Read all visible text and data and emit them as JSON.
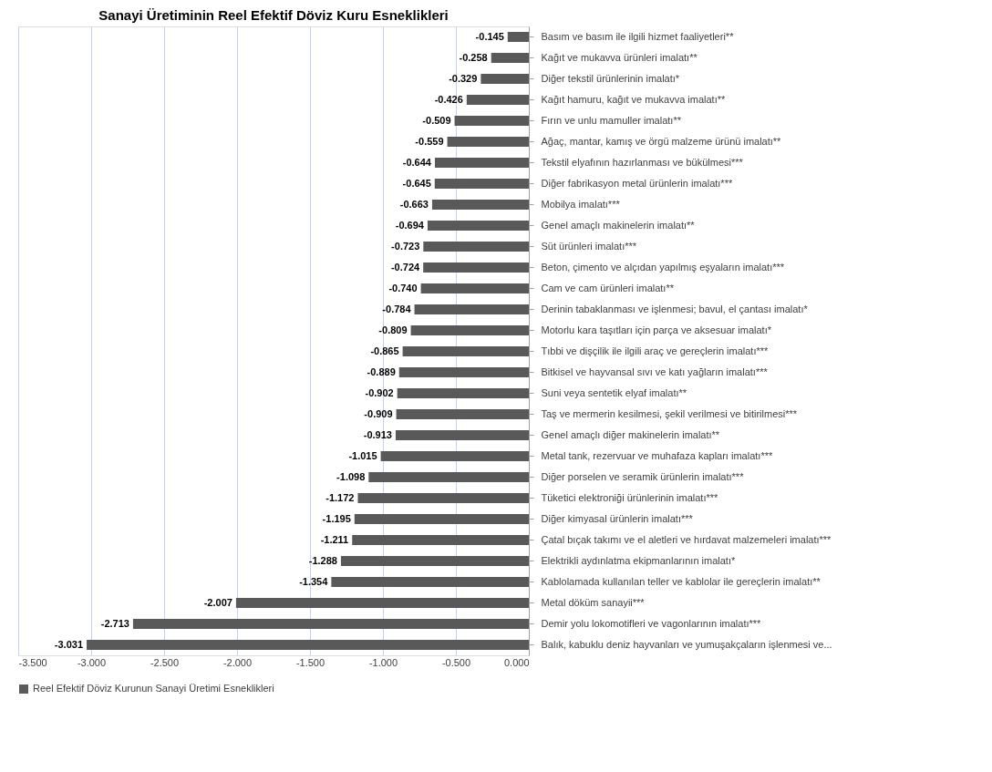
{
  "chart_data": {
    "type": "bar",
    "orientation": "horizontal",
    "title": "Sanayi Üretiminin Reel Efektif Döviz Kuru Esneklikleri",
    "categories": [
      "Basım ve basım ile ilgili hizmet faaliyetleri**",
      "Kağıt ve mukavva ürünleri imalatı**",
      "Diğer tekstil ürünlerinin imalatı*",
      "Kağıt hamuru, kağıt ve mukavva imalatı**",
      "Fırın ve unlu mamuller imalatı**",
      "Ağaç, mantar, kamış ve örgü malzeme ürünü imalatı**",
      "Tekstil elyafının hazırlanması ve bükülmesi***",
      "Diğer fabrikasyon metal ürünlerin imalatı***",
      "Mobilya imalatı***",
      "Genel amaçlı makinelerin imalatı**",
      "Süt ürünleri imalatı***",
      "Beton, çimento ve alçıdan yapılmış eşyaların imalatı***",
      "Cam ve cam ürünleri imalatı**",
      "Derinin tabaklanması ve işlenmesi; bavul, el çantası imalatı*",
      "Motorlu kara taşıtları için parça ve aksesuar imalatı*",
      "Tıbbi ve dişçilik ile ilgili araç ve gereçlerin imalatı***",
      "Bitkisel ve hayvansal sıvı ve katı yağların imalatı***",
      "Suni veya sentetik elyaf imalatı**",
      "Taş ve mermerin kesilmesi, şekil verilmesi ve bitirilmesi***",
      "Genel amaçlı diğer makinelerin imalatı**",
      "Metal tank, rezervuar ve muhafaza kapları imalatı***",
      "Diğer porselen ve seramik ürünlerin imalatı***",
      "Tüketici elektroniği ürünlerinin imalatı***",
      "Diğer kimyasal ürünlerin imalatı***",
      "Çatal bıçak takımı ve el aletleri ve hırdavat malzemeleri imalatı***",
      "Elektrikli aydınlatma ekipmanlarının imalatı*",
      "Kablolamada kullanılan teller ve kablolar ile gereçlerin imalatı**",
      "Metal döküm sanayii***",
      "Demir yolu lokomotifleri ve vagonlarının imalatı***",
      "Balık, kabuklu deniz hayvanları ve yumuşakçaların işlenmesi ve..."
    ],
    "series": [
      {
        "name": "Reel Efektif Döviz Kurunun Sanayi Üretimi Esneklikleri",
        "color": "#595959",
        "values": [
          -0.145,
          -0.258,
          -0.329,
          -0.426,
          -0.509,
          -0.559,
          -0.644,
          -0.645,
          -0.663,
          -0.694,
          -0.723,
          -0.724,
          -0.74,
          -0.784,
          -0.809,
          -0.865,
          -0.889,
          -0.902,
          -0.909,
          -0.913,
          -1.015,
          -1.098,
          -1.172,
          -1.195,
          -1.211,
          -1.288,
          -1.354,
          -2.007,
          -2.713,
          -3.031
        ],
        "value_labels": [
          "-0.145",
          "-0.258",
          "-0.329",
          "-0.426",
          "-0.509",
          "-0.559",
          "-0.644",
          "-0.645",
          "-0.663",
          "-0.694",
          "-0.723",
          "-0.724",
          "-0.740",
          "-0.784",
          "-0.809",
          "-0.865",
          "-0.889",
          "-0.902",
          "-0.909",
          "-0.913",
          "-1.015",
          "-1.098",
          "-1.172",
          "-1.195",
          "-1.211",
          "-1.288",
          "-1.354",
          "-2.007",
          "-2.713",
          "-3.031"
        ]
      }
    ],
    "xlim": [
      -3.5,
      0
    ],
    "xticks": [
      {
        "value": -3.5,
        "label": "-3.500"
      },
      {
        "value": -3.0,
        "label": "-3.000"
      },
      {
        "value": -2.5,
        "label": "-2.500"
      },
      {
        "value": -2.0,
        "label": "-2.000"
      },
      {
        "value": -1.5,
        "label": "-1.500"
      },
      {
        "value": -1.0,
        "label": "-1.000"
      },
      {
        "value": -0.5,
        "label": "-0.500"
      },
      {
        "value": 0,
        "label": "0.000"
      }
    ],
    "grid": "x",
    "legend": "bottom"
  }
}
